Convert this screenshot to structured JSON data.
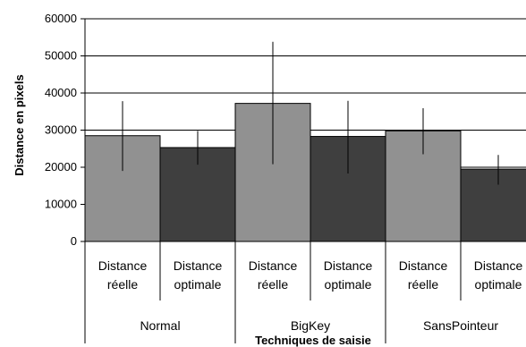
{
  "chart_data": {
    "type": "bar",
    "title": "",
    "xlabel": "Techniques de saisie",
    "ylabel": "Distance en pixels",
    "ylim": [
      0,
      60000
    ],
    "yticks": [
      "0",
      "10000",
      "20000",
      "30000",
      "40000",
      "50000",
      "60000"
    ],
    "grid": true,
    "groups": [
      {
        "name": "Normal",
        "bars": [
          {
            "line1": "Distance",
            "line2": "réelle",
            "value": 28500,
            "err_low": 19000,
            "err_high": 37800,
            "color": "#919191"
          },
          {
            "line1": "Distance",
            "line2": "optimale",
            "value": 25300,
            "err_low": 20700,
            "err_high": 29800,
            "color": "#3f3f3f"
          }
        ]
      },
      {
        "name": "BigKey",
        "bars": [
          {
            "line1": "Distance",
            "line2": "réelle",
            "value": 37200,
            "err_low": 20800,
            "err_high": 53800,
            "color": "#919191"
          },
          {
            "line1": "Distance",
            "line2": "optimale",
            "value": 28300,
            "err_low": 18300,
            "err_high": 37900,
            "color": "#3f3f3f"
          }
        ]
      },
      {
        "name": "SansPointeur",
        "bars": [
          {
            "line1": "Distance",
            "line2": "réelle",
            "value": 29800,
            "err_low": 23500,
            "err_high": 35900,
            "color": "#919191"
          },
          {
            "line1": "Distance",
            "line2": "optimale",
            "value": 19500,
            "err_low": 15300,
            "err_high": 23300,
            "color": "#3f3f3f"
          }
        ]
      }
    ]
  }
}
